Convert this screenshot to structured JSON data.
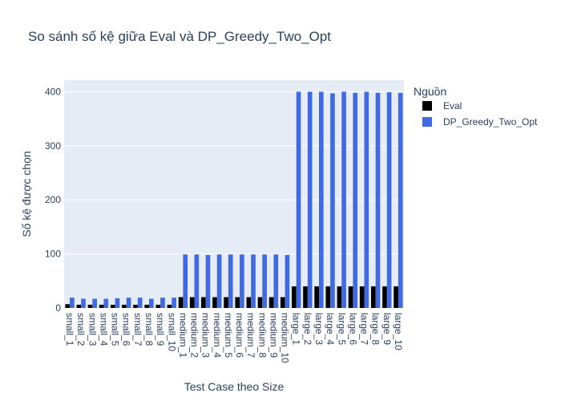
{
  "chart_data": {
    "type": "bar",
    "title": "So sánh số kệ giữa Eval và DP_Greedy_Two_Opt",
    "xlabel": "Test Case theo Size",
    "ylabel": "Số kệ được chọn",
    "ylim": [
      0,
      420
    ],
    "yticks": [
      0,
      100,
      200,
      300,
      400
    ],
    "grid": true,
    "legend": {
      "title": "Nguồn",
      "placement": "top-right"
    },
    "categories": [
      "small_1",
      "small_2",
      "small_3",
      "small_4",
      "small_5",
      "small_6",
      "small_7",
      "small_8",
      "small_9",
      "small_10",
      "medium_1",
      "medium_2",
      "medium_3",
      "medium_4",
      "medium_5",
      "medium_6",
      "medium_7",
      "medium_8",
      "medium_9",
      "medium_10",
      "large_1",
      "large_2",
      "large_3",
      "large_4",
      "large_5",
      "large_6",
      "large_7",
      "large_8",
      "large_9",
      "large_10"
    ],
    "series": [
      {
        "name": "Eval",
        "color": "#000000",
        "values": [
          7,
          6,
          6,
          6,
          6,
          6,
          6,
          6,
          6,
          6,
          20,
          20,
          20,
          20,
          20,
          20,
          20,
          20,
          20,
          20,
          40,
          40,
          40,
          40,
          40,
          40,
          40,
          40,
          40,
          40
        ]
      },
      {
        "name": "DP_Greedy_Two_Opt",
        "color": "#4169e1",
        "values": [
          19,
          17,
          17,
          17,
          18,
          19,
          19,
          17,
          19,
          19,
          99,
          99,
          98,
          99,
          99,
          99,
          99,
          99,
          99,
          98,
          400,
          400,
          400,
          397,
          400,
          398,
          400,
          398,
          399,
          398
        ]
      }
    ]
  },
  "colors": {
    "plot_bg": "#e5ecf6",
    "grid": "#ffffff",
    "text": "#2a3f5f"
  }
}
